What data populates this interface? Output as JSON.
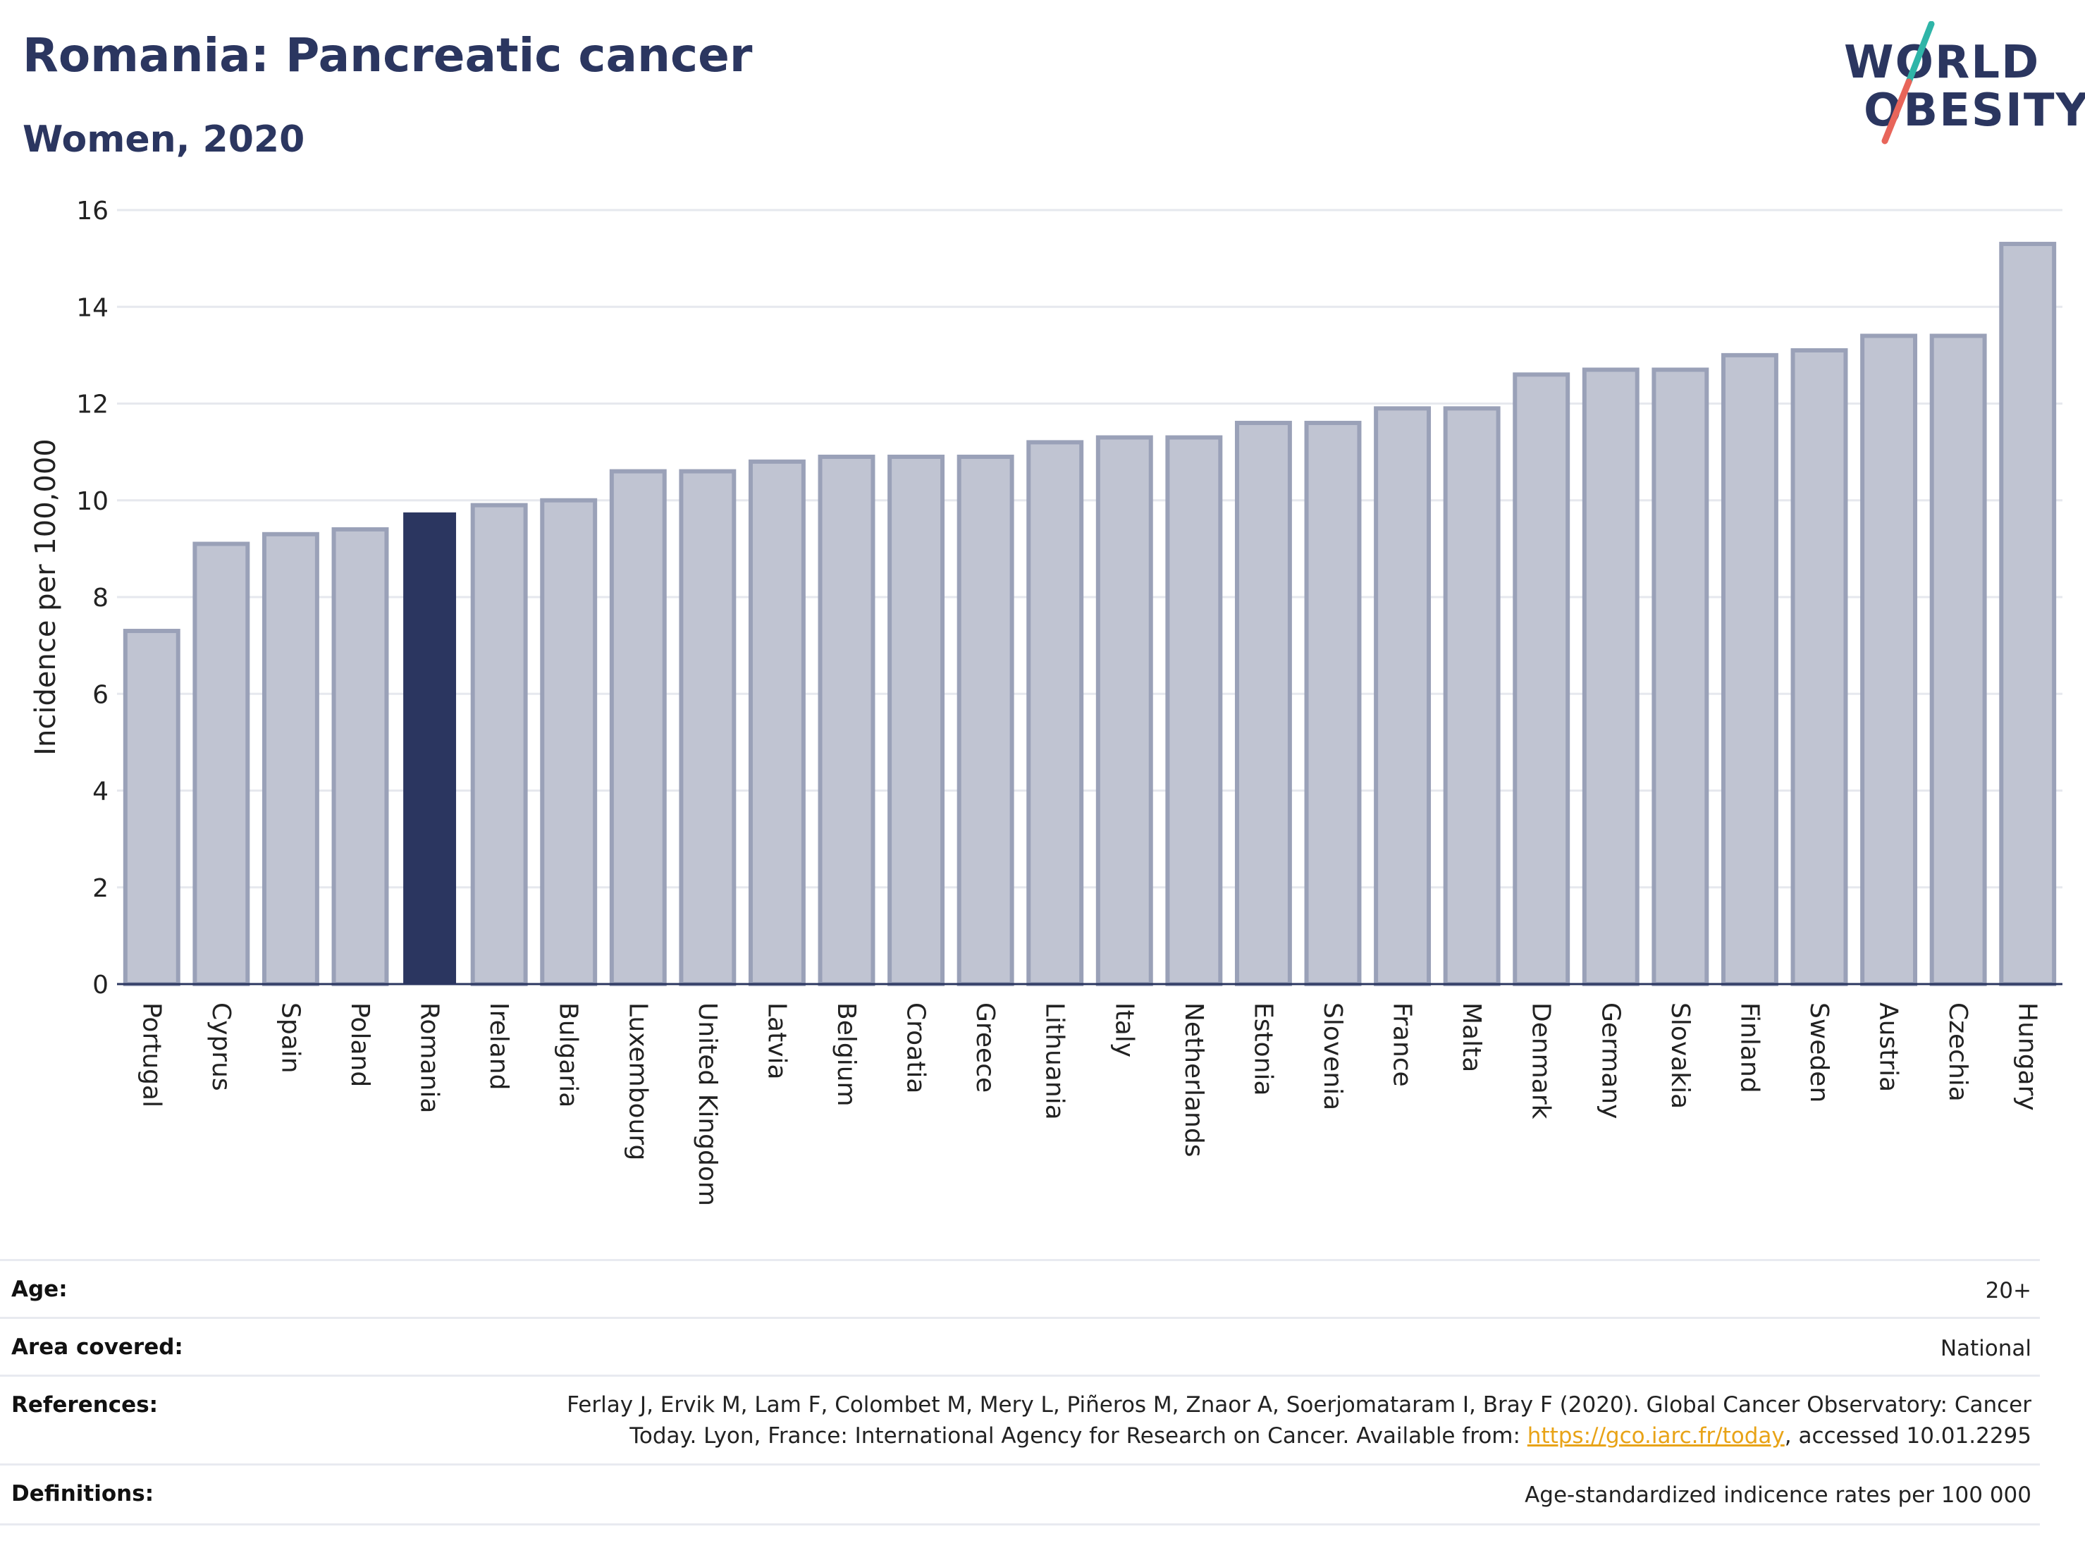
{
  "header": {
    "title": "Romania: Pancreatic cancer",
    "subtitle": "Women, 2020"
  },
  "logo": {
    "line1": "WORLD",
    "line2": "OBESITY",
    "accent_colors": [
      "#2fb5a8",
      "#e8655a"
    ]
  },
  "colors": {
    "bar": "#c0c4d2",
    "bar_border": "#9aa1b8",
    "highlight": "#2b3660",
    "text": "#2b3660"
  },
  "chart_data": {
    "type": "bar",
    "ylabel": "Incidence per 100,000",
    "ylim": [
      0,
      16
    ],
    "yticks": [
      0,
      2,
      4,
      6,
      8,
      10,
      12,
      14,
      16
    ],
    "highlight": "Romania",
    "grid": true,
    "categories": [
      "Portugal",
      "Cyprus",
      "Spain",
      "Poland",
      "Romania",
      "Ireland",
      "Bulgaria",
      "Luxembourg",
      "United Kingdom",
      "Latvia",
      "Belgium",
      "Croatia",
      "Greece",
      "Lithuania",
      "Italy",
      "Netherlands",
      "Estonia",
      "Slovenia",
      "France",
      "Malta",
      "Denmark",
      "Germany",
      "Slovakia",
      "Finland",
      "Sweden",
      "Austria",
      "Czechia",
      "Hungary"
    ],
    "values": [
      7.3,
      9.1,
      9.3,
      9.4,
      9.75,
      9.9,
      10.0,
      10.6,
      10.6,
      10.8,
      10.9,
      10.9,
      10.9,
      11.2,
      11.3,
      11.3,
      11.6,
      11.6,
      11.9,
      11.9,
      12.6,
      12.7,
      12.7,
      13.0,
      13.1,
      13.4,
      13.4,
      15.3
    ]
  },
  "info": {
    "age_label": "Age:",
    "age_value": "20+",
    "area_label": "Area covered:",
    "area_value": "National",
    "references_label": "References:",
    "references_line1": "Ferlay J, Ervik M, Lam F, Colombet M, Mery L, Piñeros M, Znaor A, Soerjomataram I, Bray F (2020). Global Cancer Observatory: Cancer",
    "references_line2_pre": "Today. Lyon, France: International Agency for Research on Cancer. Available from: ",
    "references_link": "https://gco.iarc.fr/today",
    "references_line2_post": ", accessed 10.01.2295",
    "definitions_label": "Definitions:",
    "definitions_value": "Age-standardized indicence rates per 100 000"
  }
}
